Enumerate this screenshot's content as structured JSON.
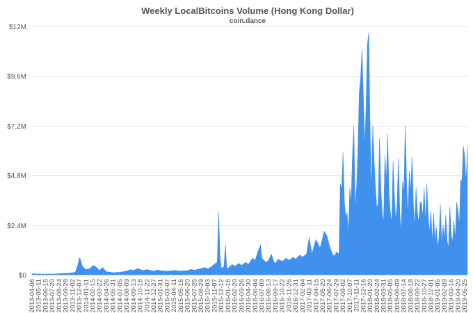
{
  "chart_data": {
    "type": "area",
    "title": "Weekly LocalBitcoins Volume (Hong Kong Dollar)",
    "subtitle": "coin.dance",
    "color": "#4090ee",
    "grid": true,
    "ylim": [
      0,
      12000000
    ],
    "yticks": [
      {
        "value": 0,
        "label": "$0"
      },
      {
        "value": 2400000,
        "label": "$2.4M"
      },
      {
        "value": 4800000,
        "label": "$4.8M"
      },
      {
        "value": 7200000,
        "label": "$7.2M"
      },
      {
        "value": 9600000,
        "label": "$9.6M"
      },
      {
        "value": 12000000,
        "label": "$12M"
      }
    ],
    "xticks": [
      "2013-04-06",
      "2013-05-11",
      "2013-06-15",
      "2013-07-20",
      "2013-08-24",
      "2013-09-28",
      "2013-11-02",
      "2013-12-07",
      "2014-01-11",
      "2014-02-15",
      "2014-03-22",
      "2014-04-26",
      "2014-05-31",
      "2014-07-05",
      "2014-08-09",
      "2014-09-13",
      "2014-10-18",
      "2014-11-22",
      "2014-12-27",
      "2015-01-31",
      "2015-03-07",
      "2015-04-11",
      "2015-05-16",
      "2015-06-20",
      "2015-07-25",
      "2015-08-29",
      "2015-10-03",
      "2015-11-07",
      "2015-12-12",
      "2016-01-16",
      "2016-02-20",
      "2016-03-26",
      "2016-04-30",
      "2016-06-04",
      "2016-07-09",
      "2016-08-13",
      "2016-09-17",
      "2016-10-22",
      "2016-11-26",
      "2016-12-31",
      "2017-02-04",
      "2017-03-11",
      "2017-04-15",
      "2017-05-20",
      "2017-06-24",
      "2017-07-29",
      "2017-09-02",
      "2017-10-07",
      "2017-11-11",
      "2017-12-16",
      "2018-01-20",
      "2018-02-24",
      "2018-03-31",
      "2018-05-05",
      "2018-06-09",
      "2018-07-14",
      "2018-08-18",
      "2018-09-22",
      "2018-10-27",
      "2018-12-01",
      "2019-01-05",
      "2019-02-09",
      "2019-03-16",
      "2019-04-20",
      "2019-05-25"
    ],
    "x_start": "2013-04-06",
    "x_end": "2019-06-08",
    "points": [
      [
        "2013-04-06",
        50000
      ],
      [
        "2013-06-01",
        30000
      ],
      [
        "2013-08-03",
        40000
      ],
      [
        "2013-09-14",
        60000
      ],
      [
        "2013-10-12",
        80000
      ],
      [
        "2013-11-02",
        100000
      ],
      [
        "2013-11-16",
        120000
      ],
      [
        "2013-11-30",
        500000
      ],
      [
        "2013-12-07",
        820000
      ],
      [
        "2013-12-14",
        700000
      ],
      [
        "2013-12-21",
        450000
      ],
      [
        "2013-12-28",
        350000
      ],
      [
        "2014-01-11",
        250000
      ],
      [
        "2014-02-01",
        300000
      ],
      [
        "2014-02-15",
        450000
      ],
      [
        "2014-03-01",
        400000
      ],
      [
        "2014-03-22",
        200000
      ],
      [
        "2014-04-05",
        350000
      ],
      [
        "2014-04-26",
        150000
      ],
      [
        "2014-05-31",
        100000
      ],
      [
        "2014-07-05",
        120000
      ],
      [
        "2014-08-09",
        180000
      ],
      [
        "2014-08-30",
        250000
      ],
      [
        "2014-09-13",
        200000
      ],
      [
        "2014-10-04",
        300000
      ],
      [
        "2014-10-18",
        260000
      ],
      [
        "2014-11-01",
        200000
      ],
      [
        "2014-11-22",
        250000
      ],
      [
        "2014-12-27",
        180000
      ],
      [
        "2015-01-17",
        230000
      ],
      [
        "2015-01-31",
        200000
      ],
      [
        "2015-03-07",
        170000
      ],
      [
        "2015-04-11",
        210000
      ],
      [
        "2015-05-16",
        180000
      ],
      [
        "2015-06-20",
        200000
      ],
      [
        "2015-07-11",
        260000
      ],
      [
        "2015-07-25",
        220000
      ],
      [
        "2015-08-29",
        300000
      ],
      [
        "2015-09-19",
        350000
      ],
      [
        "2015-10-03",
        280000
      ],
      [
        "2015-10-24",
        400000
      ],
      [
        "2015-11-07",
        520000
      ],
      [
        "2015-11-21",
        600000
      ],
      [
        "2015-11-28",
        3000000
      ],
      [
        "2015-12-05",
        900000
      ],
      [
        "2015-12-12",
        300000
      ],
      [
        "2015-12-26",
        400000
      ],
      [
        "2016-01-02",
        1450000
      ],
      [
        "2016-01-09",
        350000
      ],
      [
        "2016-01-16",
        300000
      ],
      [
        "2016-02-06",
        500000
      ],
      [
        "2016-02-20",
        400000
      ],
      [
        "2016-03-12",
        550000
      ],
      [
        "2016-03-26",
        450000
      ],
      [
        "2016-04-16",
        600000
      ],
      [
        "2016-04-30",
        500000
      ],
      [
        "2016-05-21",
        800000
      ],
      [
        "2016-06-04",
        700000
      ],
      [
        "2016-06-18",
        1100000
      ],
      [
        "2016-07-02",
        1450000
      ],
      [
        "2016-07-09",
        800000
      ],
      [
        "2016-07-30",
        600000
      ],
      [
        "2016-08-13",
        700000
      ],
      [
        "2016-08-27",
        1000000
      ],
      [
        "2016-09-10",
        600000
      ],
      [
        "2016-09-17",
        550000
      ],
      [
        "2016-10-01",
        750000
      ],
      [
        "2016-10-22",
        650000
      ],
      [
        "2016-11-12",
        800000
      ],
      [
        "2016-11-26",
        700000
      ],
      [
        "2016-12-17",
        850000
      ],
      [
        "2016-12-31",
        750000
      ],
      [
        "2017-01-21",
        950000
      ],
      [
        "2017-02-04",
        850000
      ],
      [
        "2017-02-25",
        1000000
      ],
      [
        "2017-03-11",
        1800000
      ],
      [
        "2017-03-25",
        1000000
      ],
      [
        "2017-04-08",
        1500000
      ],
      [
        "2017-04-15",
        1700000
      ],
      [
        "2017-05-06",
        1300000
      ],
      [
        "2017-05-20",
        1800000
      ],
      [
        "2017-05-27",
        2100000
      ],
      [
        "2017-06-10",
        1900000
      ],
      [
        "2017-06-24",
        1400000
      ],
      [
        "2017-07-08",
        1000000
      ],
      [
        "2017-07-22",
        900000
      ],
      [
        "2017-07-29",
        1100000
      ],
      [
        "2017-08-12",
        1000000
      ],
      [
        "2017-08-19",
        4400000
      ],
      [
        "2017-08-26",
        4100000
      ],
      [
        "2017-09-02",
        5900000
      ],
      [
        "2017-09-09",
        3500000
      ],
      [
        "2017-09-16",
        2800000
      ],
      [
        "2017-09-23",
        3000000
      ],
      [
        "2017-09-30",
        2000000
      ],
      [
        "2017-10-07",
        4200000
      ],
      [
        "2017-10-14",
        3500000
      ],
      [
        "2017-10-21",
        5800000
      ],
      [
        "2017-10-28",
        7200000
      ],
      [
        "2017-11-04",
        3200000
      ],
      [
        "2017-11-11",
        4200000
      ],
      [
        "2017-11-18",
        6000000
      ],
      [
        "2017-11-25",
        8800000
      ],
      [
        "2017-12-02",
        9500000
      ],
      [
        "2017-12-09",
        10900000
      ],
      [
        "2017-12-16",
        8700000
      ],
      [
        "2017-12-23",
        6200000
      ],
      [
        "2017-12-30",
        8000000
      ],
      [
        "2018-01-06",
        11100000
      ],
      [
        "2018-01-13",
        11700000
      ],
      [
        "2018-01-20",
        7100000
      ],
      [
        "2018-01-27",
        4000000
      ],
      [
        "2018-02-03",
        7200000
      ],
      [
        "2018-02-10",
        5500000
      ],
      [
        "2018-02-17",
        4200000
      ],
      [
        "2018-02-24",
        3200000
      ],
      [
        "2018-03-03",
        3500000
      ],
      [
        "2018-03-10",
        6600000
      ],
      [
        "2018-03-17",
        4100000
      ],
      [
        "2018-03-24",
        3000000
      ],
      [
        "2018-03-31",
        2500000
      ],
      [
        "2018-04-07",
        5800000
      ],
      [
        "2018-04-14",
        4500000
      ],
      [
        "2018-04-21",
        6800000
      ],
      [
        "2018-04-28",
        4000000
      ],
      [
        "2018-05-05",
        3000000
      ],
      [
        "2018-05-12",
        2500000
      ],
      [
        "2018-05-19",
        5500000
      ],
      [
        "2018-05-26",
        3800000
      ],
      [
        "2018-06-02",
        2600000
      ],
      [
        "2018-06-09",
        3500000
      ],
      [
        "2018-06-16",
        5600000
      ],
      [
        "2018-06-23",
        3000000
      ],
      [
        "2018-06-30",
        2000000
      ],
      [
        "2018-07-07",
        4500000
      ],
      [
        "2018-07-14",
        4000000
      ],
      [
        "2018-07-21",
        7200000
      ],
      [
        "2018-07-28",
        4500000
      ],
      [
        "2018-08-04",
        2800000
      ],
      [
        "2018-08-11",
        5000000
      ],
      [
        "2018-08-18",
        4000000
      ],
      [
        "2018-08-25",
        5700000
      ],
      [
        "2018-09-01",
        3500000
      ],
      [
        "2018-09-08",
        2300000
      ],
      [
        "2018-09-15",
        4200000
      ],
      [
        "2018-09-22",
        3000000
      ],
      [
        "2018-09-29",
        2500000
      ],
      [
        "2018-10-06",
        3500000
      ],
      [
        "2018-10-13",
        3500000
      ],
      [
        "2018-10-20",
        2800000
      ],
      [
        "2018-10-27",
        4200000
      ],
      [
        "2018-11-03",
        2500000
      ],
      [
        "2018-11-10",
        4400000
      ],
      [
        "2018-11-17",
        2800000
      ],
      [
        "2018-11-24",
        2000000
      ],
      [
        "2018-12-01",
        3100000
      ],
      [
        "2018-12-08",
        1500000
      ],
      [
        "2018-12-15",
        3000000
      ],
      [
        "2018-12-22",
        1600000
      ],
      [
        "2018-12-29",
        2300000
      ],
      [
        "2019-01-05",
        1300000
      ],
      [
        "2019-01-12",
        1800000
      ],
      [
        "2019-01-19",
        3400000
      ],
      [
        "2019-01-26",
        1500000
      ],
      [
        "2019-02-02",
        2400000
      ],
      [
        "2019-02-09",
        1700000
      ],
      [
        "2019-02-16",
        2900000
      ],
      [
        "2019-02-23",
        1600000
      ],
      [
        "2019-03-02",
        1300000
      ],
      [
        "2019-03-09",
        3300000
      ],
      [
        "2019-03-16",
        1900000
      ],
      [
        "2019-03-23",
        1600000
      ],
      [
        "2019-03-30",
        2600000
      ],
      [
        "2019-04-06",
        1700000
      ],
      [
        "2019-04-13",
        3500000
      ],
      [
        "2019-04-20",
        3100000
      ],
      [
        "2019-04-27",
        2400000
      ],
      [
        "2019-05-04",
        4600000
      ],
      [
        "2019-05-11",
        4500000
      ],
      [
        "2019-05-18",
        6200000
      ],
      [
        "2019-05-25",
        5700000
      ],
      [
        "2019-06-01",
        4400000
      ],
      [
        "2019-06-08",
        6200000
      ]
    ]
  }
}
